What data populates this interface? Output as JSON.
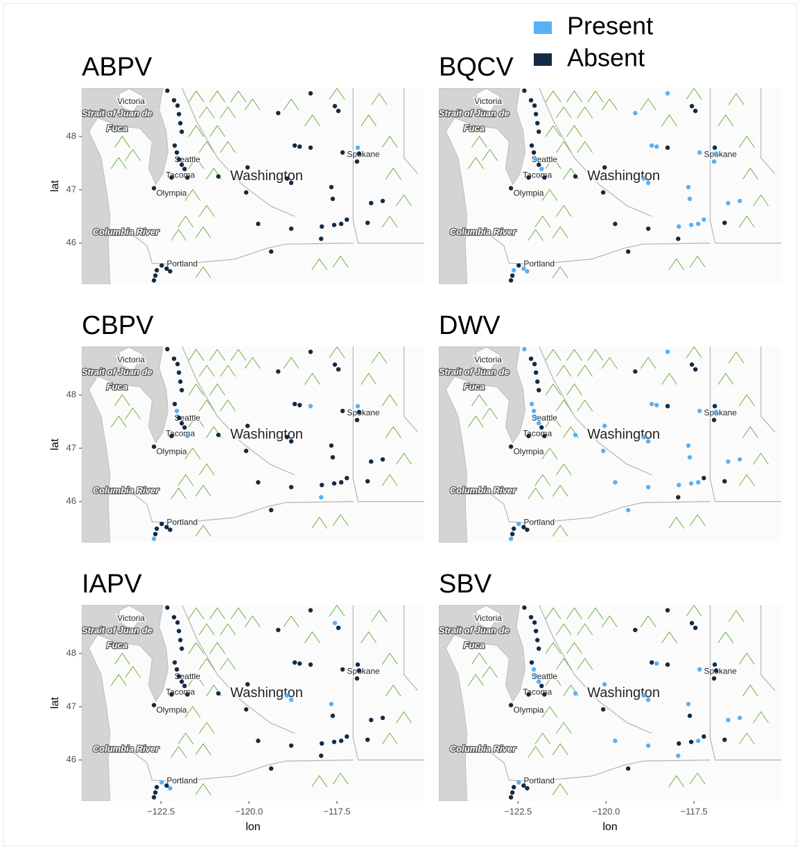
{
  "map_labels": [
    "Victoria",
    "Strait of Juan de",
    "Fuca",
    "Seattle",
    "Tacoma",
    "Olympia",
    "Columbia River",
    "Portland",
    "Spokane",
    "Washington"
  ],
  "chart_data": [
    {
      "type": "scatter",
      "title": "ABPV",
      "xlim": [
        -124.75,
        -115.02
      ],
      "ylim": [
        45.23,
        48.91
      ],
      "yticks": [
        46,
        47,
        48
      ],
      "ylabel": "lat",
      "series": [
        {
          "name": "Present",
          "color": "#56B1F7",
          "x": [
            -116.91
          ],
          "y": [
            47.79
          ]
        },
        {
          "name": "Absent",
          "color": "#132B43",
          "x": [
            -122.32,
            -122.13,
            -122.03,
            -121.99,
            -121.95,
            -121.91,
            -122.11,
            -122.05,
            -121.99,
            -121.91,
            -121.83,
            -121.75,
            -122.2,
            -122.7,
            -120.87,
            -120.04,
            -120.08,
            -119.17,
            -118.25,
            -117.56,
            -117.46,
            -118.7,
            -118.56,
            -118.25,
            -118.92,
            -118.8,
            -119.74,
            -118.8,
            -117.66,
            -117.62,
            -117.93,
            -117.58,
            -117.38,
            -117.22,
            -117.95,
            -119.37,
            -117.34,
            -116.87,
            -116.93,
            -116.53,
            -116.2,
            -116.63,
            -122.48,
            -122.62,
            -122.66,
            -122.34,
            -122.24,
            -122.7
          ],
          "y": [
            48.86,
            48.68,
            48.58,
            48.42,
            48.25,
            48.09,
            47.83,
            47.7,
            47.57,
            47.47,
            47.39,
            47.23,
            47.23,
            47.03,
            47.25,
            47.42,
            46.95,
            48.44,
            48.81,
            48.57,
            48.48,
            47.83,
            47.81,
            47.79,
            47.21,
            47.13,
            46.36,
            46.27,
            47.05,
            46.83,
            46.31,
            46.34,
            46.36,
            46.44,
            46.08,
            45.84,
            47.7,
            47.68,
            47.53,
            46.75,
            46.79,
            46.38,
            45.58,
            45.49,
            45.39,
            45.52,
            45.47,
            45.3
          ]
        }
      ]
    },
    {
      "type": "scatter",
      "title": "BQCV",
      "xlim": [
        -124.75,
        -115.02
      ],
      "ylim": [
        45.23,
        48.91
      ],
      "series": [
        {
          "name": "Present",
          "color": "#56B1F7",
          "x": [
            -121.99,
            -121.83,
            -119.17,
            -118.25,
            -118.7,
            -118.56,
            -118.92,
            -118.8,
            -117.66,
            -117.62,
            -117.93,
            -117.58,
            -117.38,
            -117.22,
            -117.34,
            -116.87,
            -116.93,
            -116.53,
            -116.2,
            -122.62,
            -122.34,
            -122.24
          ],
          "y": [
            47.57,
            47.39,
            48.44,
            48.81,
            47.83,
            47.81,
            47.21,
            47.13,
            47.05,
            46.83,
            46.31,
            46.34,
            46.36,
            46.44,
            47.7,
            47.68,
            47.53,
            46.75,
            46.79,
            45.49,
            45.52,
            45.47
          ]
        },
        {
          "name": "Absent",
          "color": "#132B43",
          "x": [
            -122.32,
            -122.13,
            -122.03,
            -121.99,
            -121.95,
            -121.91,
            -122.11,
            -122.05,
            -121.91,
            -121.75,
            -122.2,
            -122.7,
            -120.87,
            -120.04,
            -120.08,
            -117.56,
            -117.46,
            -118.25,
            -119.74,
            -118.8,
            -117.95,
            -119.37,
            -116.91,
            -116.63,
            -122.48,
            -122.66,
            -122.7
          ],
          "y": [
            48.86,
            48.68,
            48.58,
            48.42,
            48.25,
            48.09,
            47.83,
            47.7,
            47.47,
            47.23,
            47.23,
            47.03,
            47.25,
            47.42,
            46.95,
            48.57,
            48.48,
            47.79,
            46.36,
            46.27,
            46.08,
            45.84,
            47.79,
            46.38,
            45.58,
            45.39,
            45.3
          ]
        }
      ]
    },
    {
      "type": "scatter",
      "title": "CBPV",
      "xlim": [
        -124.75,
        -115.02
      ],
      "ylim": [
        45.23,
        48.91
      ],
      "yticks": [
        46,
        47,
        48
      ],
      "ylabel": "lat",
      "series": [
        {
          "name": "Present",
          "color": "#56B1F7",
          "x": [
            -122.05,
            -121.75,
            -118.25,
            -117.95,
            -116.91,
            -122.7
          ],
          "y": [
            47.7,
            47.23,
            47.79,
            46.08,
            47.79,
            45.3
          ]
        },
        {
          "name": "Absent",
          "color": "#132B43",
          "x": [
            -122.32,
            -122.13,
            -122.03,
            -121.99,
            -121.95,
            -121.91,
            -122.11,
            -121.99,
            -121.91,
            -121.83,
            -122.2,
            -122.7,
            -120.87,
            -120.04,
            -120.08,
            -119.17,
            -118.25,
            -117.56,
            -117.46,
            -118.7,
            -118.56,
            -118.92,
            -118.8,
            -119.74,
            -118.8,
            -117.66,
            -117.62,
            -117.93,
            -117.58,
            -117.38,
            -117.22,
            -119.37,
            -117.34,
            -116.87,
            -116.93,
            -116.53,
            -116.2,
            -116.63,
            -122.48,
            -122.62,
            -122.66,
            -122.34,
            -122.24
          ],
          "y": [
            48.86,
            48.68,
            48.58,
            48.42,
            48.25,
            48.09,
            47.83,
            47.57,
            47.47,
            47.39,
            47.23,
            47.03,
            47.25,
            47.42,
            46.95,
            48.44,
            48.81,
            48.57,
            48.48,
            47.83,
            47.81,
            47.21,
            47.13,
            46.36,
            46.27,
            47.05,
            46.83,
            46.31,
            46.34,
            46.36,
            46.44,
            45.84,
            47.7,
            47.68,
            47.53,
            46.75,
            46.79,
            46.38,
            45.58,
            45.49,
            45.39,
            45.52,
            45.47
          ]
        }
      ]
    },
    {
      "type": "scatter",
      "title": "DWV",
      "xlim": [
        -124.75,
        -115.02
      ],
      "ylim": [
        45.23,
        48.91
      ],
      "series": [
        {
          "name": "Present",
          "color": "#56B1F7",
          "x": [
            -122.32,
            -122.11,
            -122.05,
            -121.99,
            -121.91,
            -120.87,
            -120.04,
            -120.08,
            -118.25,
            -118.7,
            -118.56,
            -118.92,
            -118.8,
            -119.74,
            -118.8,
            -117.66,
            -117.62,
            -117.93,
            -117.58,
            -117.38,
            -119.37,
            -117.34,
            -116.87,
            -116.53,
            -116.2,
            -122.48,
            -122.7
          ],
          "y": [
            48.86,
            47.83,
            47.7,
            47.57,
            47.47,
            47.25,
            47.42,
            46.95,
            48.81,
            47.83,
            47.81,
            47.21,
            47.13,
            46.36,
            46.27,
            47.05,
            46.83,
            46.31,
            46.34,
            46.36,
            45.84,
            47.7,
            47.68,
            46.75,
            46.79,
            45.58,
            45.3
          ]
        },
        {
          "name": "Absent",
          "color": "#132B43",
          "x": [
            -122.13,
            -122.03,
            -121.99,
            -121.95,
            -121.91,
            -121.83,
            -121.75,
            -122.2,
            -122.7,
            -119.17,
            -117.56,
            -117.46,
            -118.25,
            -117.22,
            -117.95,
            -116.91,
            -116.93,
            -116.63,
            -122.62,
            -122.66,
            -122.34,
            -122.24
          ],
          "y": [
            48.68,
            48.58,
            48.42,
            48.25,
            48.09,
            47.39,
            47.23,
            47.23,
            47.03,
            48.44,
            48.57,
            48.48,
            47.79,
            46.44,
            46.08,
            47.79,
            47.53,
            46.38,
            45.49,
            45.39,
            45.52,
            45.47
          ]
        }
      ]
    },
    {
      "type": "scatter",
      "title": "IAPV",
      "xlim": [
        -124.75,
        -115.02
      ],
      "ylim": [
        45.23,
        48.91
      ],
      "yticks": [
        46,
        47,
        48
      ],
      "ylabel": "lat",
      "xticks": [
        {
          "value": -122.5,
          "label": "−122.5"
        },
        {
          "value": -120,
          "label": "−120.0"
        },
        {
          "value": -117.5,
          "label": "−117.5"
        }
      ],
      "xlabel": "lon",
      "series": [
        {
          "name": "Present",
          "color": "#56B1F7",
          "x": [
            -117.56,
            -118.92,
            -118.8,
            -117.66,
            -122.48,
            -122.24
          ],
          "y": [
            48.57,
            47.21,
            47.13,
            47.05,
            45.58,
            45.47
          ]
        },
        {
          "name": "Absent",
          "color": "#132B43",
          "x": [
            -122.32,
            -122.13,
            -122.03,
            -121.99,
            -121.95,
            -121.91,
            -122.11,
            -122.05,
            -121.99,
            -121.91,
            -121.83,
            -121.75,
            -122.2,
            -122.7,
            -120.87,
            -120.04,
            -120.08,
            -119.17,
            -118.25,
            -117.46,
            -118.7,
            -118.56,
            -118.25,
            -119.74,
            -118.8,
            -117.62,
            -117.93,
            -117.58,
            -117.38,
            -117.22,
            -117.95,
            -119.37,
            -117.34,
            -116.91,
            -116.87,
            -116.93,
            -116.53,
            -116.2,
            -116.63,
            -122.62,
            -122.66,
            -122.34,
            -122.7
          ],
          "y": [
            48.86,
            48.68,
            48.58,
            48.42,
            48.25,
            48.09,
            47.83,
            47.7,
            47.57,
            47.47,
            47.39,
            47.23,
            47.23,
            47.03,
            47.25,
            47.42,
            46.95,
            48.44,
            48.81,
            48.48,
            47.83,
            47.81,
            47.79,
            46.36,
            46.27,
            46.83,
            46.31,
            46.34,
            46.36,
            46.44,
            46.08,
            45.84,
            47.7,
            47.79,
            47.68,
            47.53,
            46.75,
            46.79,
            46.38,
            45.49,
            45.39,
            45.52,
            45.3
          ]
        }
      ]
    },
    {
      "type": "scatter",
      "title": "SBV",
      "xlim": [
        -124.75,
        -115.02
      ],
      "ylim": [
        45.23,
        48.91
      ],
      "xticks": [
        {
          "value": -122.5,
          "label": "−122.5"
        },
        {
          "value": -120,
          "label": "−120.0"
        },
        {
          "value": -117.5,
          "label": "−117.5"
        }
      ],
      "xlabel": "lon",
      "series": [
        {
          "name": "Present",
          "color": "#56B1F7",
          "x": [
            -122.05,
            -121.99,
            -121.91,
            -120.87,
            -120.04,
            -118.56,
            -118.92,
            -118.8,
            -119.74,
            -118.8,
            -117.66,
            -117.38,
            -117.95,
            -117.34,
            -116.53,
            -116.2,
            -122.48
          ],
          "y": [
            47.7,
            47.57,
            47.47,
            47.25,
            47.42,
            47.81,
            47.21,
            47.13,
            46.36,
            46.27,
            47.05,
            46.36,
            46.08,
            47.7,
            46.75,
            46.79,
            45.58
          ]
        },
        {
          "name": "Absent",
          "color": "#132B43",
          "x": [
            -122.32,
            -122.13,
            -122.03,
            -121.99,
            -121.95,
            -121.91,
            -122.11,
            -121.83,
            -121.75,
            -122.2,
            -122.7,
            -120.08,
            -119.17,
            -118.25,
            -117.56,
            -117.46,
            -118.7,
            -118.25,
            -117.62,
            -117.93,
            -117.58,
            -117.22,
            -119.37,
            -116.91,
            -116.87,
            -116.93,
            -116.63,
            -122.62,
            -122.66,
            -122.34,
            -122.24,
            -122.7
          ],
          "y": [
            48.86,
            48.68,
            48.58,
            48.42,
            48.25,
            48.09,
            47.83,
            47.39,
            47.23,
            47.23,
            47.03,
            46.95,
            48.44,
            48.81,
            48.57,
            48.48,
            47.83,
            47.79,
            46.83,
            46.31,
            46.34,
            46.44,
            45.84,
            47.79,
            47.68,
            47.53,
            46.38,
            45.49,
            45.39,
            45.52,
            45.47,
            45.3
          ]
        }
      ]
    }
  ]
}
